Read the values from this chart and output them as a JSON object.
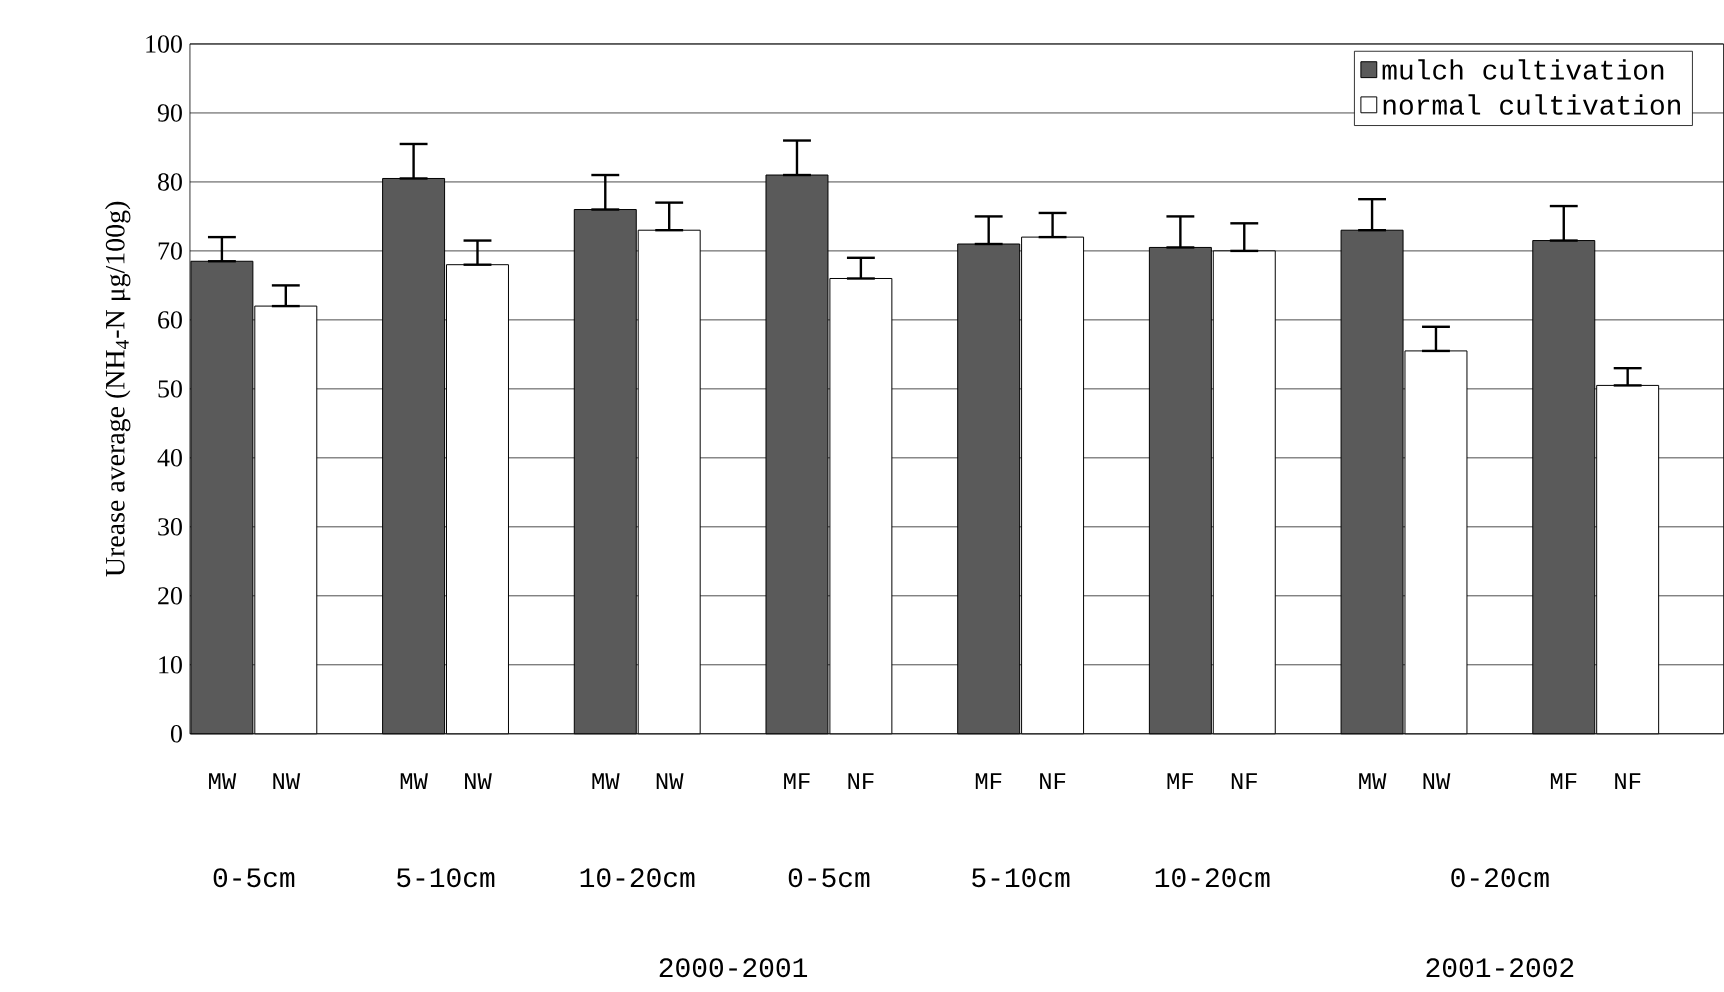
{
  "chart_data": {
    "type": "bar",
    "ylabel": "Urease average  (NH$_{4}$-N μg/100g)",
    "categories": [
      "MW",
      "NW",
      "MW",
      "NW",
      "MW",
      "NW",
      "MF",
      "NF",
      "MF",
      "NF",
      "MF",
      "NF",
      "MW",
      "NW",
      "MF",
      "NF"
    ],
    "series": [
      {
        "name": "mulch cultivation",
        "color": "#5a5a5a",
        "values": [
          68.5,
          null,
          80.5,
          null,
          76,
          null,
          81,
          null,
          71,
          null,
          70.5,
          null,
          73,
          null,
          71.5,
          null
        ],
        "errors": [
          [
            68.5,
            72
          ],
          null,
          [
            80.5,
            85.5
          ],
          null,
          [
            76,
            81
          ],
          null,
          [
            81,
            86
          ],
          null,
          [
            71,
            75
          ],
          null,
          [
            70.5,
            75
          ],
          null,
          [
            73,
            77.5
          ],
          null,
          [
            71.5,
            76.5
          ],
          null
        ]
      },
      {
        "name": "normal cultivation",
        "color": "#ffffff",
        "values": [
          null,
          62,
          null,
          68,
          null,
          73,
          null,
          66,
          null,
          72,
          null,
          70,
          null,
          55.5,
          null,
          50.5
        ],
        "errors": [
          null,
          [
            62,
            65
          ],
          null,
          [
            68,
            71.5
          ],
          null,
          [
            73,
            77
          ],
          null,
          [
            66,
            69
          ],
          null,
          [
            72,
            75.5
          ],
          null,
          [
            70,
            74
          ],
          null,
          [
            55.5,
            59
          ],
          null,
          [
            50.5,
            53
          ]
        ]
      }
    ],
    "ylim": [
      0,
      100
    ],
    "yticks": [
      0,
      10,
      20,
      30,
      40,
      50,
      60,
      70,
      80,
      90,
      100
    ],
    "grid": "y",
    "legend": "top right",
    "annotations": [
      "0-5cm",
      "5-10cm",
      "10-20cm",
      "0-5cm",
      "5-10cm",
      "10-20cm",
      "0-20cm",
      "2000-2001",
      "2001-2002"
    ]
  }
}
